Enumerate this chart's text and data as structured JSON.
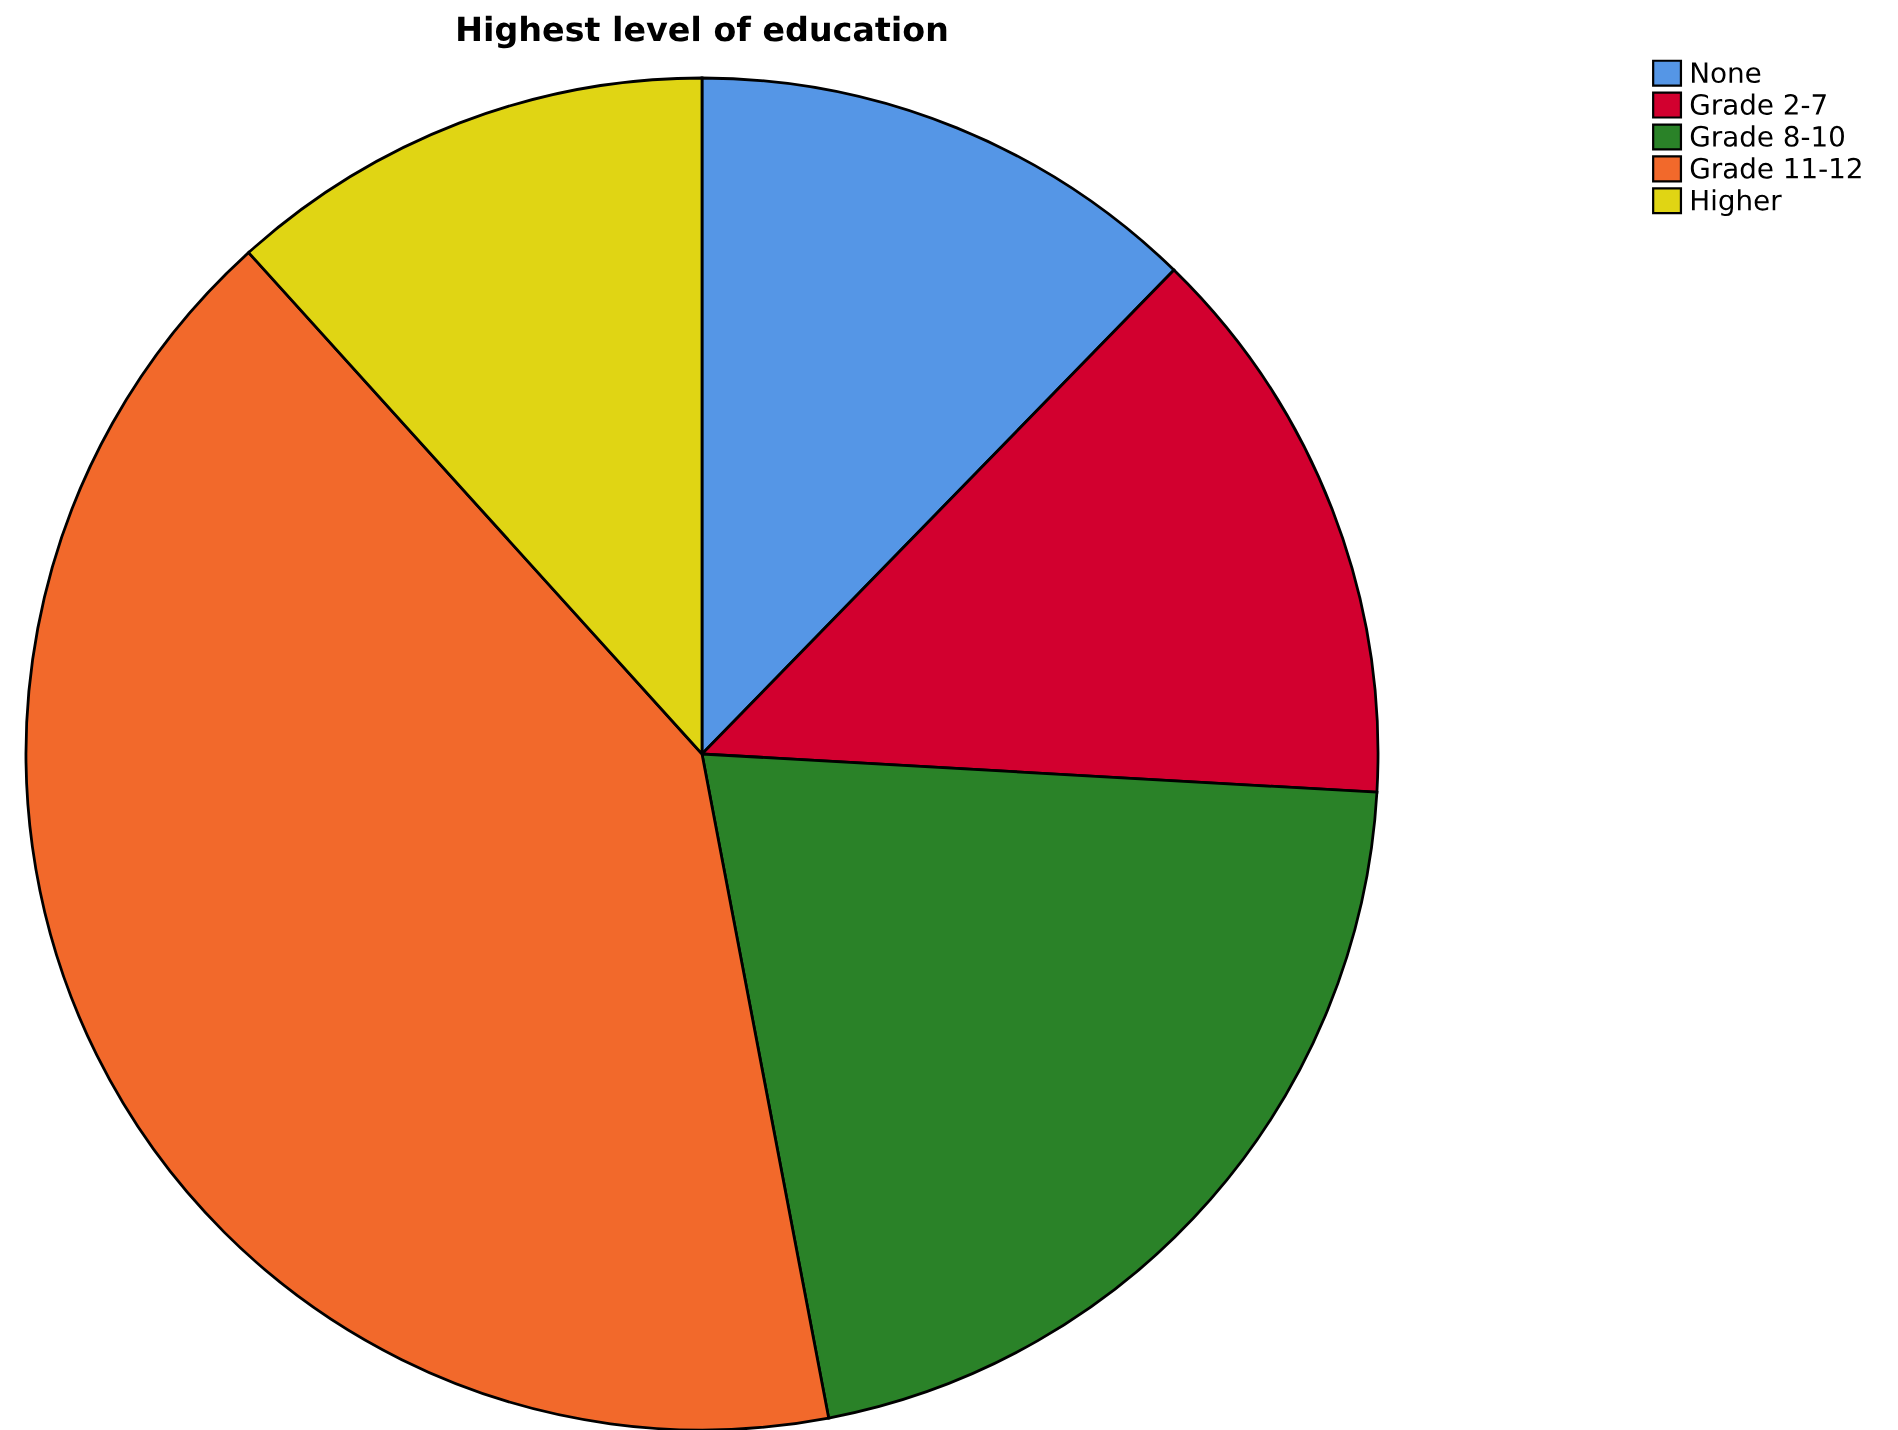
{
  "chart_data": {
    "type": "pie",
    "title": "Highest level of education",
    "categories": [
      "None",
      "Grade 2-7",
      "Grade 8-10",
      "Grade 11-12",
      "Higher"
    ],
    "values": [
      12.3,
      13.6,
      21.1,
      41.3,
      11.7
    ],
    "colors": [
      "#5596e6",
      "#d2002f",
      "#2a8228",
      "#f2692b",
      "#e0d514"
    ],
    "legend": "top right"
  }
}
